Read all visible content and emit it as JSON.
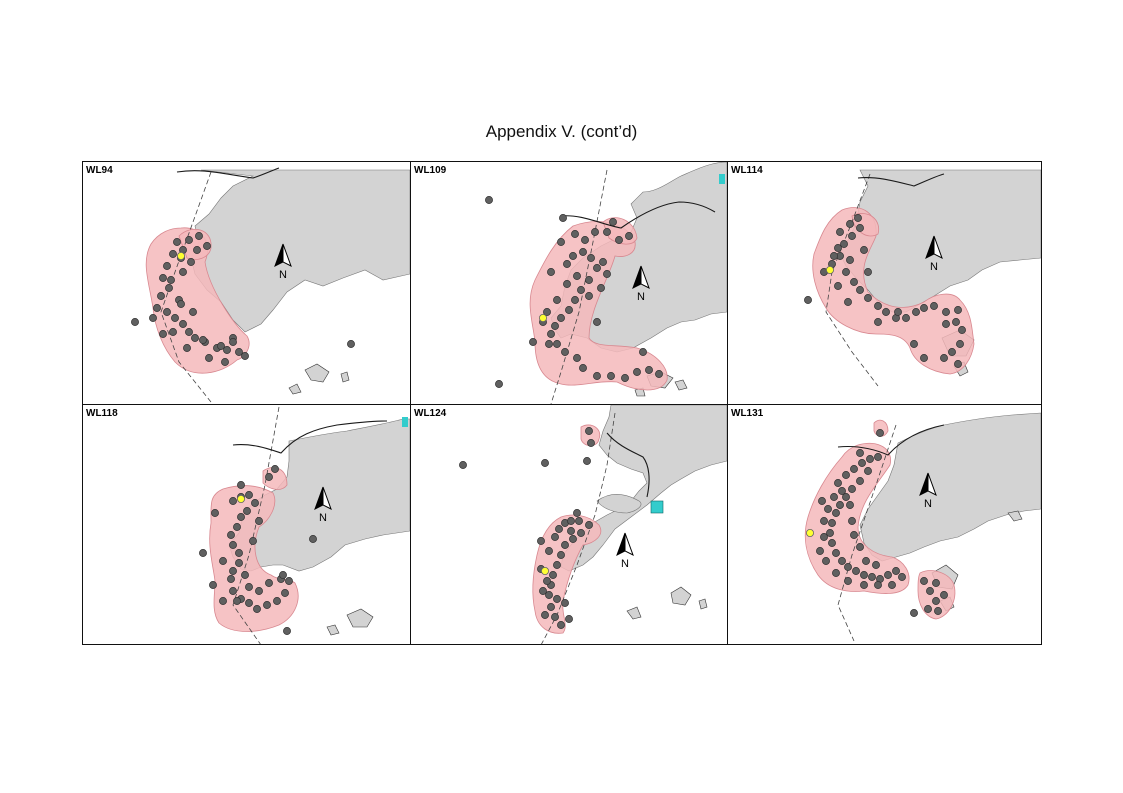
{
  "title": "Appendix V.  (cont’d)",
  "north_label": "N",
  "colors": {
    "land": "#d3d3d3",
    "home_range": "#f5b8bb",
    "home_range_edge": "#d88890",
    "point": "#606060",
    "point_edge": "#333333",
    "highlight_point": "#ffff33",
    "water_feature": "#33cccc"
  },
  "panels": [
    {
      "id": "WL94",
      "label": "WL94"
    },
    {
      "id": "WL109",
      "label": "WL109"
    },
    {
      "id": "WL114",
      "label": "WL114"
    },
    {
      "id": "WL118",
      "label": "WL118"
    },
    {
      "id": "WL124",
      "label": "WL124"
    },
    {
      "id": "WL131",
      "label": "WL131"
    }
  ]
}
